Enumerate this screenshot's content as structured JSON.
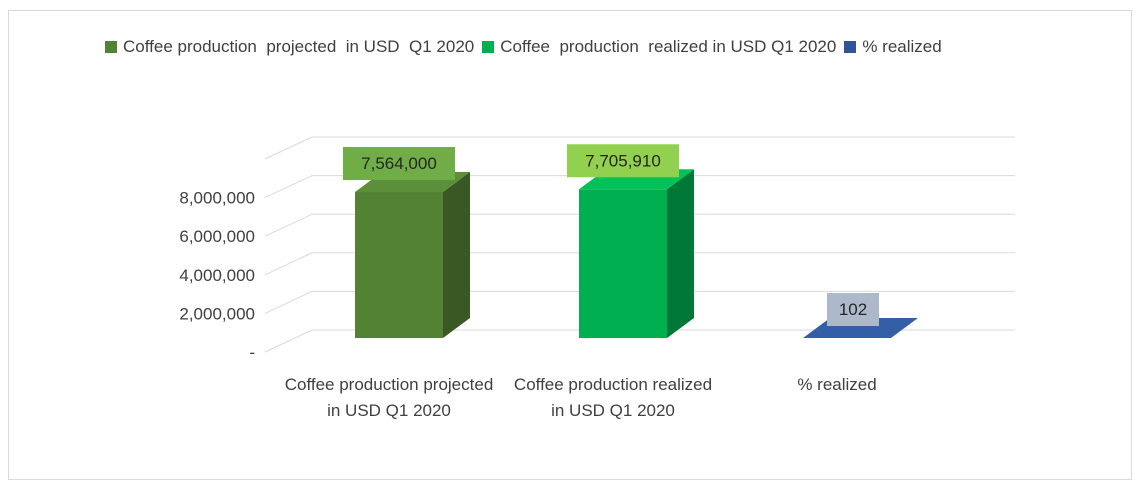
{
  "chart_data": {
    "type": "bar3d",
    "categories": [
      "Coffee production  projected  in USD  Q1 2020",
      "Coffee  production  realized in USD Q1 2020",
      "% realized"
    ],
    "values": [
      7564000,
      7705910,
      102
    ],
    "value_labels": [
      "7,564,000",
      "7,705,910",
      "102"
    ],
    "colors": [
      "#548235",
      "#00b050",
      "#2f5597"
    ],
    "label_colors": [
      "#70ad47",
      "#92d050",
      "#adb9ca"
    ],
    "ylim": [
      0,
      10000000
    ],
    "yticks": [
      {
        "value": 0,
        "label": "-"
      },
      {
        "value": 2000000,
        "label": "2,000,000"
      },
      {
        "value": 4000000,
        "label": "4,000,000"
      },
      {
        "value": 6000000,
        "label": "6,000,000"
      },
      {
        "value": 8000000,
        "label": "8,000,000"
      }
    ],
    "grid": true,
    "legend": "top"
  }
}
